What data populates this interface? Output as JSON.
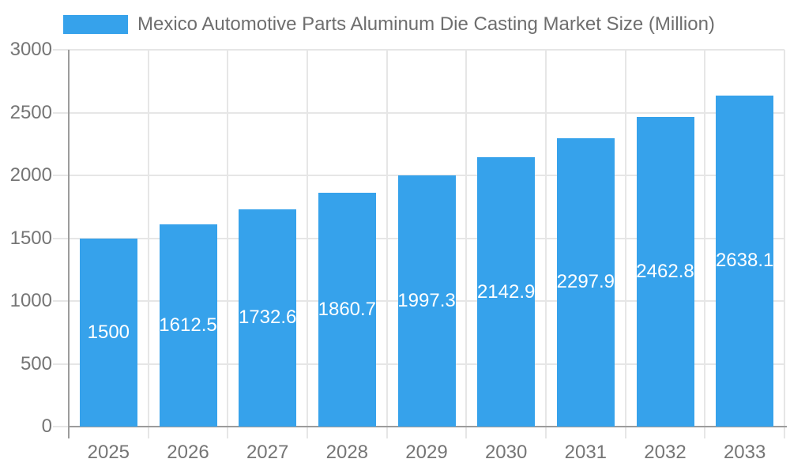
{
  "chart_data": {
    "type": "bar",
    "title": "Mexico Automotive Parts Aluminum Die Casting Market Size (Million)",
    "legend": {
      "position": "top",
      "label": "Mexico Automotive Parts Aluminum Die Casting Market Size (Million)"
    },
    "categories": [
      "2025",
      "2026",
      "2027",
      "2028",
      "2029",
      "2030",
      "2031",
      "2032",
      "2033"
    ],
    "values": [
      1500,
      1612.5,
      1732.6,
      1860.7,
      1997.3,
      2142.9,
      2297.9,
      2462.8,
      2638.1
    ],
    "value_labels": [
      "1500",
      "1612.5",
      "1732.6",
      "1860.7",
      "1997.3",
      "2142.9",
      "2297.9",
      "2462.8",
      "2638.1"
    ],
    "xlabel": "",
    "ylabel": "",
    "ylim": [
      0,
      3000
    ],
    "yticks": [
      0,
      500,
      1000,
      1500,
      2000,
      2500,
      3000
    ],
    "grid": true,
    "colors": {
      "bar": "#36A2EB",
      "tick_text": "#757575",
      "legend_text": "#6E6E6E",
      "bar_value_text": "#FFFFFF",
      "gridline": "#E6E6E6",
      "axis_line": "#9C9C9C",
      "background": "#FFFFFF"
    }
  }
}
